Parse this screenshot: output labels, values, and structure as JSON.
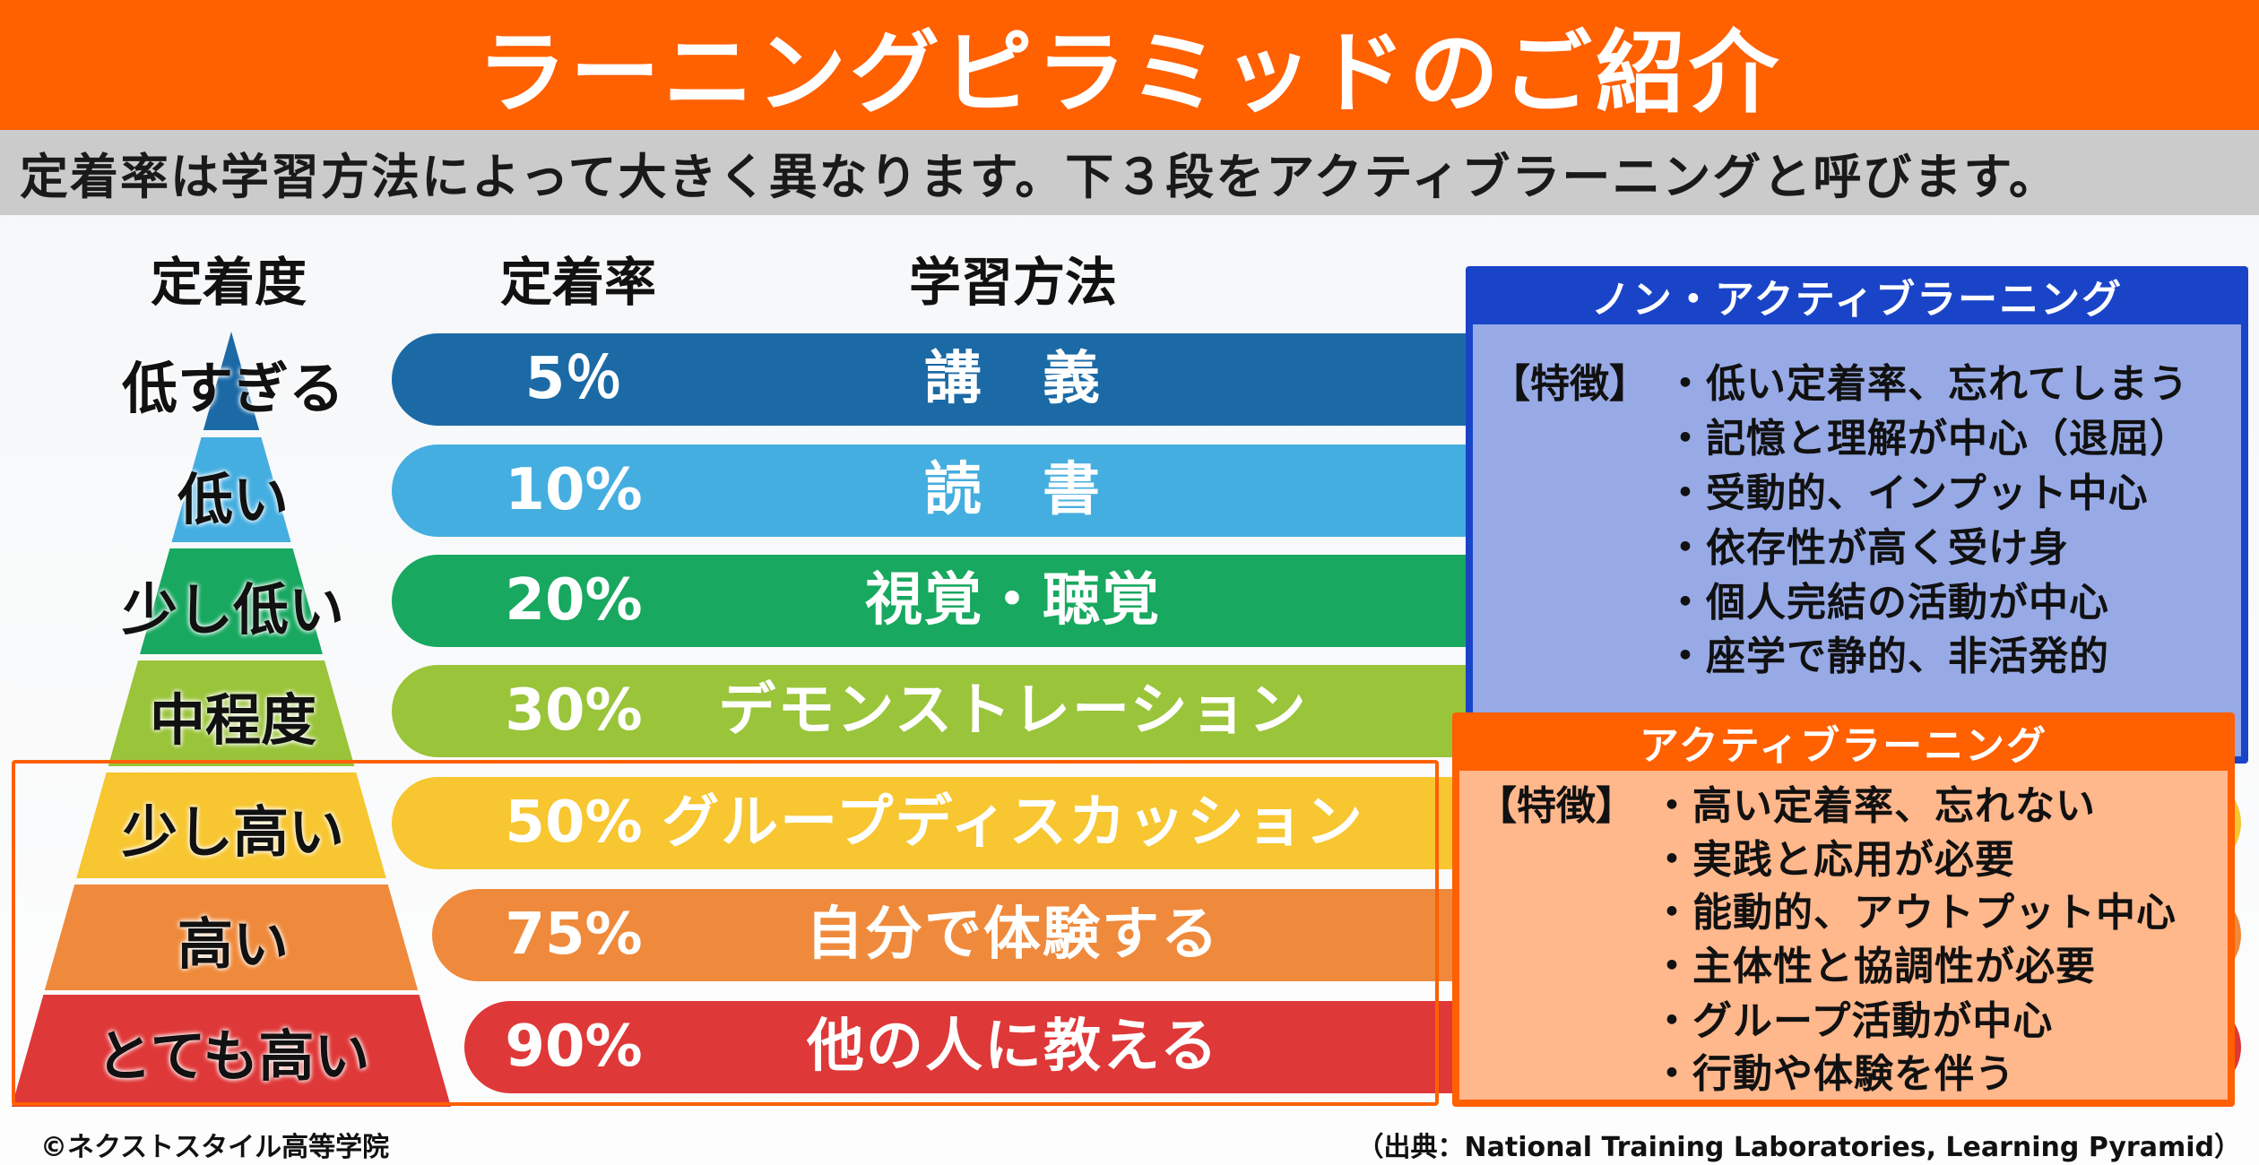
{
  "title": "ラーニングピラミッドのご紹介",
  "subtitle": "定着率は学習方法によって大きく異なります。下３段をアクティブラーニングと呼びます。",
  "columns": {
    "level": "定着度",
    "rate": "定着率",
    "method": "学習方法"
  },
  "rows": [
    {
      "level": "低すぎる",
      "rate": "5％",
      "method": "講　義",
      "color": "#1b6aa6"
    },
    {
      "level": "低い",
      "rate": "10%",
      "method": "読　書",
      "color": "#45aee0"
    },
    {
      "level": "少し低い",
      "rate": "20%",
      "method": "視覚・聴覚",
      "color": "#18a860"
    },
    {
      "level": "中程度",
      "rate": "30%",
      "method": "デモンストレーション",
      "color": "#9ac43a"
    },
    {
      "level": "少し高い",
      "rate": "50%",
      "method": "グループディスカッション",
      "color": "#f7c630"
    },
    {
      "level": "高い",
      "rate": "75%",
      "method": "自分で体験する",
      "color": "#ef8a3c"
    },
    {
      "level": "とても高い",
      "rate": "90%",
      "method": "他の人に教える",
      "color": "#df3838"
    }
  ],
  "non_active": {
    "title": "ノン・アクティブラーニング",
    "feature_label": "【特徴】",
    "items": [
      "・低い定着率、忘れてしまう",
      "・記憶と理解が中心（退屈）",
      "・受動的、インプット中心",
      "・依存性が高く受け身",
      "・個人完結の活動が中心",
      "・座学で静的、非活発的"
    ],
    "color": "#1a44c8"
  },
  "active": {
    "title": "アクティブラーニング",
    "feature_label": "【特徴】",
    "items": [
      "・高い定着率、忘れない",
      "・実践と応用が必要",
      "・能動的、アウトプット中心",
      "・主体性と協調性が必要",
      "・グループ活動が中心",
      "・行動や体験を伴う"
    ],
    "color": "#ff6000"
  },
  "footer": {
    "copyright": "©ネクストスタイル高等学院",
    "source": "（出典：National Training Laboratories, Learning Pyramid）"
  }
}
